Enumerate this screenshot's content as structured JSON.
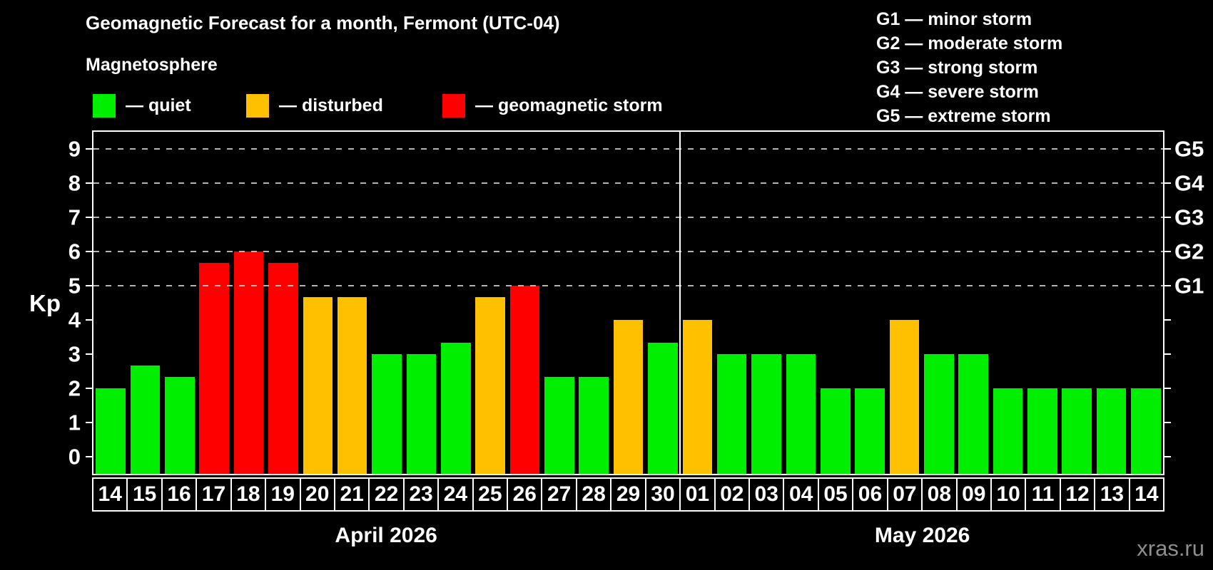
{
  "header": {
    "title": "Geomagnetic Forecast for a month, Fermont (UTC-04)",
    "subtitle": "Magnetosphere"
  },
  "legend": {
    "items": [
      {
        "key": "quiet",
        "label": "— quiet",
        "color": "#00ee00"
      },
      {
        "key": "disturbed",
        "label": "— disturbed",
        "color": "#ffc000"
      },
      {
        "key": "storm",
        "label": "— geomagnetic storm",
        "color": "#ff0000"
      }
    ]
  },
  "g_scale_legend": [
    "G1 — minor storm",
    "G2 — moderate storm",
    "G3 — strong storm",
    "G4 — severe storm",
    "G5 — extreme storm"
  ],
  "watermark": "xras.ru",
  "chart_data": {
    "type": "bar",
    "title": "Geomagnetic Forecast for a month, Fermont (UTC-04)",
    "ylabel": "Kp",
    "ylim": [
      -0.5,
      9.5
    ],
    "y_ticks": [
      0,
      1,
      2,
      3,
      4,
      5,
      6,
      7,
      8,
      9
    ],
    "right_ticks": [
      0,
      1,
      2,
      3,
      4,
      5,
      6,
      7,
      8,
      9
    ],
    "right_labels": [
      {
        "value": 5,
        "label": "G1"
      },
      {
        "value": 6,
        "label": "G2"
      },
      {
        "value": 7,
        "label": "G3"
      },
      {
        "value": 8,
        "label": "G4"
      },
      {
        "value": 9,
        "label": "G5"
      }
    ],
    "gridlines_at": [
      5,
      6,
      7,
      8,
      9
    ],
    "grid": "dashed-horizontal",
    "legend_position": "top-left",
    "status_colors": {
      "quiet": "#00ee00",
      "disturbed": "#ffc000",
      "storm": "#ff0000"
    },
    "months": [
      {
        "label": "April 2026",
        "days": 17
      },
      {
        "label": "May 2026",
        "days": 14
      }
    ],
    "points": [
      {
        "day": "14",
        "value": 2.0,
        "status": "quiet"
      },
      {
        "day": "15",
        "value": 2.67,
        "status": "quiet"
      },
      {
        "day": "16",
        "value": 2.33,
        "status": "quiet"
      },
      {
        "day": "17",
        "value": 5.67,
        "status": "storm"
      },
      {
        "day": "18",
        "value": 6.0,
        "status": "storm"
      },
      {
        "day": "19",
        "value": 5.67,
        "status": "storm"
      },
      {
        "day": "20",
        "value": 4.67,
        "status": "disturbed"
      },
      {
        "day": "21",
        "value": 4.67,
        "status": "disturbed"
      },
      {
        "day": "22",
        "value": 3.0,
        "status": "quiet"
      },
      {
        "day": "23",
        "value": 3.0,
        "status": "quiet"
      },
      {
        "day": "24",
        "value": 3.33,
        "status": "quiet"
      },
      {
        "day": "25",
        "value": 4.67,
        "status": "disturbed"
      },
      {
        "day": "26",
        "value": 5.0,
        "status": "storm"
      },
      {
        "day": "27",
        "value": 2.33,
        "status": "quiet"
      },
      {
        "day": "28",
        "value": 2.33,
        "status": "quiet"
      },
      {
        "day": "29",
        "value": 4.0,
        "status": "disturbed"
      },
      {
        "day": "30",
        "value": 3.33,
        "status": "quiet"
      },
      {
        "day": "01",
        "value": 4.0,
        "status": "disturbed"
      },
      {
        "day": "02",
        "value": 3.0,
        "status": "quiet"
      },
      {
        "day": "03",
        "value": 3.0,
        "status": "quiet"
      },
      {
        "day": "04",
        "value": 3.0,
        "status": "quiet"
      },
      {
        "day": "05",
        "value": 2.0,
        "status": "quiet"
      },
      {
        "day": "06",
        "value": 2.0,
        "status": "quiet"
      },
      {
        "day": "07",
        "value": 4.0,
        "status": "disturbed"
      },
      {
        "day": "08",
        "value": 3.0,
        "status": "quiet"
      },
      {
        "day": "09",
        "value": 3.0,
        "status": "quiet"
      },
      {
        "day": "10",
        "value": 2.0,
        "status": "quiet"
      },
      {
        "day": "11",
        "value": 2.0,
        "status": "quiet"
      },
      {
        "day": "12",
        "value": 2.0,
        "status": "quiet"
      },
      {
        "day": "13",
        "value": 2.0,
        "status": "quiet"
      },
      {
        "day": "14",
        "value": 2.0,
        "status": "quiet"
      }
    ]
  }
}
